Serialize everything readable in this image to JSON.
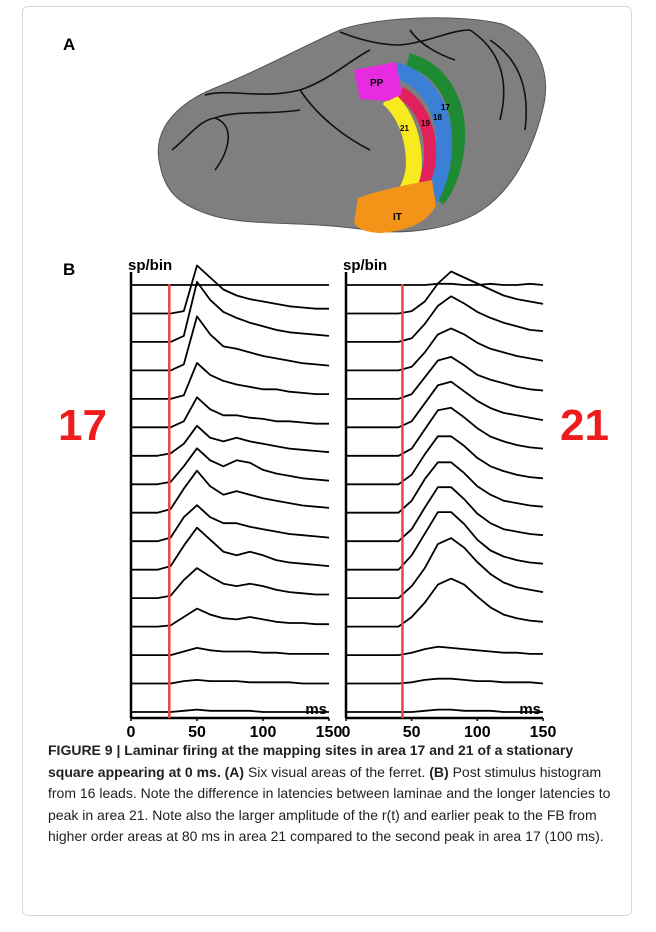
{
  "panel_a": {
    "label": "A",
    "areas": {
      "pp": "PP",
      "it": "IT",
      "a21": "21",
      "a19": "19",
      "a18": "18",
      "a17": "17"
    }
  },
  "panel_b": {
    "label": "B",
    "plots": [
      {
        "area_label": "17",
        "y_label": "sp/bin",
        "x_label": "ms",
        "xlim": [
          0,
          150
        ],
        "xticks": [
          0,
          50,
          100,
          150
        ],
        "marker_ms": 29,
        "x": [
          0,
          10,
          20,
          30,
          40,
          50,
          60,
          70,
          80,
          90,
          100,
          110,
          120,
          130,
          140,
          150
        ],
        "traces": [
          [
            0,
            0,
            0,
            0,
            0,
            0,
            0,
            0,
            0,
            0,
            0,
            0,
            0,
            0,
            0,
            0
          ],
          [
            0,
            0,
            0,
            0,
            0.2,
            4,
            3,
            2,
            1.5,
            1.2,
            1,
            0.8,
            0.6,
            0.5,
            0.4,
            0.4
          ],
          [
            0,
            0,
            0,
            0,
            0.5,
            5,
            3.5,
            2.5,
            2,
            1.6,
            1.3,
            1,
            0.8,
            0.7,
            0.6,
            0.5
          ],
          [
            0,
            0,
            0,
            0,
            0.5,
            4.5,
            3,
            2,
            1.8,
            1.5,
            1.2,
            1,
            0.8,
            0.6,
            0.5,
            0.4
          ],
          [
            0,
            0,
            0,
            0,
            0.3,
            3,
            2,
            1.5,
            1.2,
            1,
            0.8,
            0.8,
            0.6,
            0.5,
            0.4,
            0.4
          ],
          [
            0,
            0,
            0,
            0,
            0.5,
            2.5,
            1.5,
            1,
            1,
            0.8,
            0.7,
            0.5,
            0.5,
            0.4,
            0.3,
            0.3
          ],
          [
            0,
            0,
            0,
            0.2,
            1,
            2.5,
            1.5,
            1.2,
            1.5,
            1.2,
            1,
            0.8,
            0.6,
            0.5,
            0.4,
            0.3
          ],
          [
            0,
            0,
            0,
            0.2,
            1.5,
            3,
            2,
            1.5,
            2,
            1.8,
            1.2,
            0.9,
            0.7,
            0.5,
            0.4,
            0.3
          ],
          [
            0,
            0,
            0,
            0.3,
            2,
            3.5,
            2.2,
            1.5,
            1.8,
            1.5,
            1.2,
            1,
            0.8,
            0.6,
            0.5,
            0.4
          ],
          [
            0,
            0,
            0,
            0.3,
            2,
            3,
            2,
            1.5,
            1.5,
            1.2,
            1,
            0.8,
            0.6,
            0.5,
            0.4,
            0.3
          ],
          [
            0,
            0,
            0,
            0.3,
            2,
            3.5,
            2.5,
            1.5,
            1.2,
            1.5,
            1.2,
            0.8,
            0.6,
            0.5,
            0.4,
            0.3
          ],
          [
            0,
            0,
            0,
            0.2,
            1.5,
            2.5,
            1.8,
            1.2,
            1,
            1.2,
            1,
            0.7,
            0.5,
            0.4,
            0.3,
            0.3
          ],
          [
            0,
            0,
            0,
            0.1,
            0.8,
            1.5,
            1,
            0.7,
            0.6,
            0.8,
            0.6,
            0.4,
            0.3,
            0.3,
            0.2,
            0.2
          ],
          [
            0,
            0,
            0,
            0,
            0.3,
            0.6,
            0.4,
            0.3,
            0.3,
            0.3,
            0.2,
            0.2,
            0.1,
            0.1,
            0.1,
            0.1
          ],
          [
            0,
            0,
            0,
            0,
            0.2,
            0.3,
            0.2,
            0.2,
            0.2,
            0.1,
            0.1,
            0.1,
            0.1,
            0,
            0,
            0
          ],
          [
            0,
            0,
            0,
            0,
            0.1,
            0.2,
            0.1,
            0.1,
            0.1,
            0.1,
            0,
            0,
            0,
            0,
            0,
            0
          ]
        ]
      },
      {
        "area_label": "21",
        "y_label": "sp/bin",
        "x_label": "ms",
        "xlim": [
          0,
          150
        ],
        "xticks": [
          0,
          50,
          100,
          150
        ],
        "marker_ms": 43,
        "x": [
          0,
          10,
          20,
          30,
          40,
          50,
          60,
          70,
          80,
          90,
          100,
          110,
          120,
          130,
          140,
          150
        ],
        "traces": [
          [
            0,
            0,
            0,
            0,
            0,
            0,
            0,
            0.1,
            0.1,
            0,
            0,
            0.1,
            0,
            0,
            0.1,
            0
          ],
          [
            0,
            0,
            0,
            0,
            0,
            0.2,
            1,
            2.5,
            3.5,
            3,
            2.5,
            2,
            1.5,
            1.2,
            1,
            0.8
          ],
          [
            0,
            0,
            0,
            0,
            0,
            0.3,
            1.5,
            3,
            3.8,
            3.2,
            2.5,
            2,
            1.6,
            1.3,
            1,
            0.9
          ],
          [
            0,
            0,
            0,
            0,
            0,
            0.3,
            1.5,
            3,
            3.5,
            3,
            2.3,
            1.8,
            1.5,
            1.2,
            1,
            0.8
          ],
          [
            0,
            0,
            0,
            0,
            0,
            0.4,
            1.8,
            3.2,
            3.5,
            2.8,
            2,
            1.6,
            1.3,
            1,
            0.8,
            0.7
          ],
          [
            0,
            0,
            0,
            0,
            0,
            0.5,
            2,
            3.5,
            3.8,
            3,
            2.2,
            1.6,
            1.2,
            1,
            0.8,
            0.6
          ],
          [
            0,
            0,
            0,
            0,
            0,
            0.6,
            2.2,
            3.8,
            4,
            3.2,
            2.3,
            1.6,
            1.2,
            0.9,
            0.7,
            0.6
          ],
          [
            0,
            0,
            0,
            0,
            0,
            0.8,
            2.5,
            4,
            4,
            3.2,
            2.2,
            1.5,
            1.1,
            0.8,
            0.6,
            0.5
          ],
          [
            0,
            0,
            0,
            0,
            0,
            1,
            2.8,
            4.2,
            4.2,
            3.3,
            2.2,
            1.5,
            1,
            0.8,
            0.6,
            0.5
          ],
          [
            0,
            0,
            0,
            0,
            0,
            1,
            2.8,
            4.5,
            4.5,
            3.5,
            2.3,
            1.5,
            1,
            0.8,
            0.6,
            0.5
          ],
          [
            0,
            0,
            0,
            0,
            0,
            1.2,
            3,
            4.8,
            4.8,
            3.8,
            2.5,
            1.6,
            1.1,
            0.8,
            0.6,
            0.5
          ],
          [
            0,
            0,
            0,
            0,
            0,
            1,
            2.5,
            4.5,
            5,
            4.2,
            3,
            2,
            1.3,
            0.9,
            0.7,
            0.5
          ],
          [
            0,
            0,
            0,
            0,
            0,
            0.8,
            2,
            3.5,
            4,
            3.5,
            2.5,
            1.6,
            1,
            0.7,
            0.5,
            0.4
          ],
          [
            0,
            0,
            0,
            0,
            0,
            0.2,
            0.5,
            0.7,
            0.6,
            0.5,
            0.4,
            0.3,
            0.2,
            0.2,
            0.1,
            0.1
          ],
          [
            0,
            0,
            0,
            0,
            0,
            0.1,
            0.3,
            0.4,
            0.4,
            0.3,
            0.2,
            0.2,
            0.1,
            0.1,
            0.1,
            0
          ],
          [
            0,
            0,
            0,
            0,
            0,
            0,
            0.1,
            0.2,
            0.2,
            0.1,
            0.1,
            0.1,
            0,
            0,
            0,
            0
          ]
        ]
      }
    ]
  },
  "caption": {
    "title": "FIGURE 9 | Laminar firing at the mapping sites in area 17 and 21 of a stationary square appearing at 0 ms.",
    "parts": [
      {
        "label": "(A)",
        "text": "Six visual areas of the ferret."
      },
      {
        "label": "(B)",
        "text": "Post stimulus histogram from 16 leads. Note the difference in latencies between laminae and the longer latencies to peak in area 21. Note also the larger amplitude of the r(t) and earlier peak to the FB from higher order areas at 80 ms in area 21 compared to the second peak in area 17 (100 ms)."
      }
    ]
  }
}
